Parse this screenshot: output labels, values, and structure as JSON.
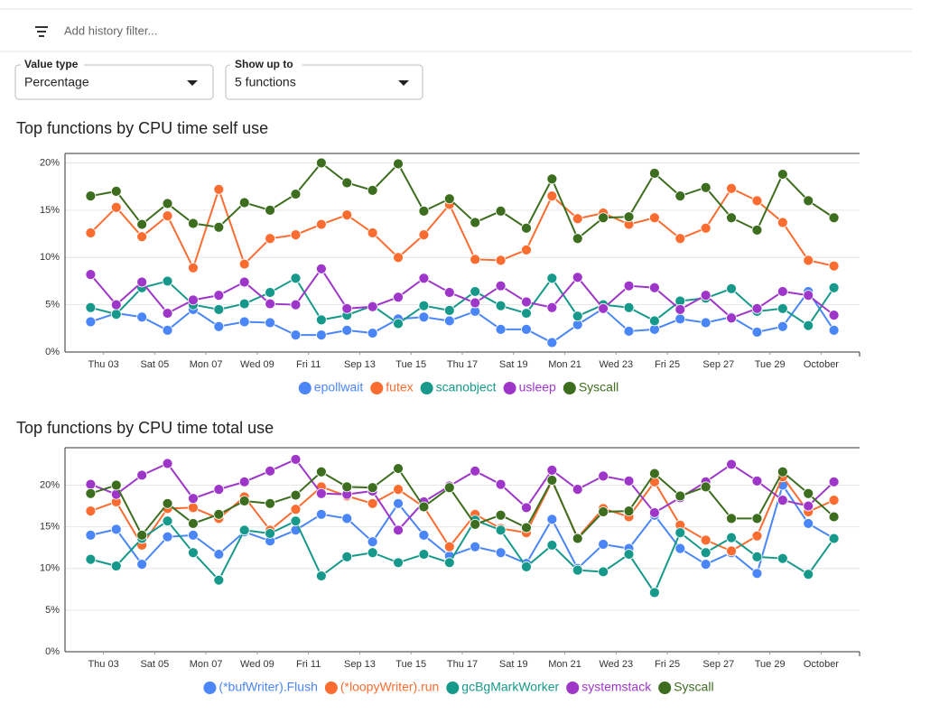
{
  "filter": {
    "placeholder": "Add history filter..."
  },
  "controls": [
    {
      "label": "Value type",
      "value": "Percentage"
    },
    {
      "label": "Show up to",
      "value": "5 functions"
    }
  ],
  "chart_data": [
    {
      "type": "line",
      "title": "Top functions by CPU time self use",
      "xlim": [
        -1,
        30
      ],
      "xticks": [
        {
          "value": 0.5,
          "label": "Thu 03"
        },
        {
          "value": 2.5,
          "label": "Sat 05"
        },
        {
          "value": 4.5,
          "label": "Mon 07"
        },
        {
          "value": 6.5,
          "label": "Wed 09"
        },
        {
          "value": 8.5,
          "label": "Fri 11"
        },
        {
          "value": 10.5,
          "label": "Sep 13"
        },
        {
          "value": 12.5,
          "label": "Tue 15"
        },
        {
          "value": 14.5,
          "label": "Thu 17"
        },
        {
          "value": 16.5,
          "label": "Sat 19"
        },
        {
          "value": 18.5,
          "label": "Mon 21"
        },
        {
          "value": 20.5,
          "label": "Wed 23"
        },
        {
          "value": 22.5,
          "label": "Fri 25"
        },
        {
          "value": 24.5,
          "label": "Sep 27"
        },
        {
          "value": 26.5,
          "label": "Tue 29"
        },
        {
          "value": 28.5,
          "label": "October"
        }
      ],
      "ylim": [
        0,
        21
      ],
      "yticks": [
        {
          "value": 0,
          "label": "0%"
        },
        {
          "value": 5,
          "label": "5%"
        },
        {
          "value": 10,
          "label": "10%"
        },
        {
          "value": 15,
          "label": "15%"
        },
        {
          "value": 20,
          "label": "20%"
        }
      ],
      "grid": true,
      "legend": "bottom",
      "series": [
        {
          "name": "epollwait",
          "color": "#4a86f7",
          "values": [
            3.2,
            4.1,
            3.7,
            2.3,
            4.5,
            2.7,
            3.2,
            3.1,
            1.8,
            1.8,
            2.3,
            2.0,
            3.5,
            3.7,
            3.3,
            4.3,
            2.4,
            2.4,
            1.0,
            2.9,
            4.6,
            2.2,
            2.4,
            3.5,
            3.1,
            3.7,
            2.1,
            2.7,
            6.4,
            2.3
          ]
        },
        {
          "name": "futex",
          "color": "#fb6c30",
          "values": [
            12.6,
            15.3,
            12.2,
            14.4,
            8.9,
            17.2,
            9.3,
            12.0,
            12.4,
            13.5,
            14.5,
            12.6,
            10.0,
            12.4,
            15.6,
            9.8,
            9.7,
            10.8,
            16.5,
            14.1,
            14.7,
            13.5,
            14.2,
            12.0,
            13.1,
            17.3,
            16.0,
            13.7,
            9.7,
            9.1
          ]
        },
        {
          "name": "scanobject",
          "color": "#16998a",
          "values": [
            4.7,
            4.0,
            6.8,
            7.5,
            5.0,
            4.5,
            5.1,
            6.3,
            7.8,
            3.4,
            3.9,
            4.9,
            3.0,
            4.9,
            4.4,
            6.4,
            4.9,
            4.1,
            7.8,
            3.8,
            5.0,
            4.7,
            3.3,
            5.4,
            5.7,
            6.7,
            4.3,
            4.6,
            2.8,
            6.8
          ]
        },
        {
          "name": "usleep",
          "color": "#9e37c9",
          "values": [
            8.2,
            5.0,
            7.4,
            4.1,
            5.5,
            6.0,
            7.4,
            5.1,
            5.0,
            8.8,
            4.6,
            4.8,
            5.8,
            7.8,
            6.3,
            5.2,
            7.0,
            5.3,
            4.7,
            7.9,
            4.6,
            7.0,
            6.8,
            4.5,
            6.0,
            3.6,
            4.6,
            6.4,
            6.0,
            3.9
          ]
        },
        {
          "name": "Syscall",
          "color": "#3d6e1f",
          "values": [
            16.5,
            17.0,
            13.5,
            15.7,
            13.6,
            13.2,
            15.8,
            15.0,
            16.7,
            20.0,
            17.9,
            17.1,
            19.9,
            14.9,
            16.2,
            13.7,
            14.9,
            13.1,
            18.3,
            12.0,
            14.2,
            14.3,
            18.9,
            16.5,
            17.4,
            14.2,
            12.9,
            18.8,
            16.0,
            14.2
          ]
        }
      ]
    },
    {
      "type": "line",
      "title": "Top functions by CPU time total use",
      "xlim": [
        -1,
        30
      ],
      "xticks": [
        {
          "value": 0.5,
          "label": "Thu 03"
        },
        {
          "value": 2.5,
          "label": "Sat 05"
        },
        {
          "value": 4.5,
          "label": "Mon 07"
        },
        {
          "value": 6.5,
          "label": "Wed 09"
        },
        {
          "value": 8.5,
          "label": "Fri 11"
        },
        {
          "value": 10.5,
          "label": "Sep 13"
        },
        {
          "value": 12.5,
          "label": "Tue 15"
        },
        {
          "value": 14.5,
          "label": "Thu 17"
        },
        {
          "value": 16.5,
          "label": "Sat 19"
        },
        {
          "value": 18.5,
          "label": "Mon 21"
        },
        {
          "value": 20.5,
          "label": "Wed 23"
        },
        {
          "value": 22.5,
          "label": "Fri 25"
        },
        {
          "value": 24.5,
          "label": "Sep 27"
        },
        {
          "value": 26.5,
          "label": "Tue 29"
        },
        {
          "value": 28.5,
          "label": "October"
        }
      ],
      "ylim": [
        0,
        24.5
      ],
      "yticks": [
        {
          "value": 0,
          "label": "0%"
        },
        {
          "value": 5,
          "label": "5%"
        },
        {
          "value": 10,
          "label": "10%"
        },
        {
          "value": 15,
          "label": "15%"
        },
        {
          "value": 20,
          "label": "20%"
        }
      ],
      "grid": true,
      "legend": "bottom",
      "series": [
        {
          "name": "(*bufWriter).Flush",
          "color": "#4a86f7",
          "values": [
            14.0,
            14.7,
            10.5,
            13.8,
            14.0,
            11.7,
            14.4,
            13.3,
            14.6,
            16.5,
            16.0,
            13.2,
            17.8,
            14.0,
            11.5,
            12.6,
            11.9,
            10.6,
            15.9,
            10.0,
            12.9,
            12.4,
            16.4,
            12.4,
            10.5,
            11.9,
            9.4,
            20.0,
            15.4,
            13.6
          ]
        },
        {
          "name": "(*loopyWriter).run",
          "color": "#fb6c30",
          "values": [
            16.9,
            18.0,
            12.8,
            17.2,
            17.3,
            16.0,
            18.6,
            14.6,
            17.1,
            19.8,
            18.7,
            17.8,
            19.5,
            17.4,
            12.6,
            16.5,
            14.8,
            14.3,
            20.5,
            13.7,
            17.2,
            16.2,
            20.4,
            15.2,
            13.4,
            12.1,
            13.9,
            21.0,
            16.8,
            18.2
          ]
        },
        {
          "name": "gcBgMarkWorker",
          "color": "#16998a",
          "values": [
            11.1,
            10.3,
            13.6,
            15.7,
            11.9,
            8.6,
            14.6,
            14.2,
            15.7,
            9.1,
            11.4,
            11.9,
            10.7,
            11.7,
            10.7,
            15.8,
            14.6,
            10.2,
            12.8,
            9.8,
            9.6,
            11.7,
            7.1,
            14.3,
            11.9,
            13.7,
            11.4,
            11.2,
            9.3,
            13.6
          ]
        },
        {
          "name": "systemstack",
          "color": "#9e37c9",
          "values": [
            20.1,
            18.9,
            21.2,
            22.6,
            18.4,
            19.5,
            20.4,
            21.7,
            23.1,
            19.0,
            18.9,
            19.3,
            14.6,
            18.0,
            19.9,
            21.7,
            20.1,
            17.3,
            21.8,
            19.5,
            21.1,
            20.5,
            16.7,
            18.5,
            20.4,
            22.5,
            20.5,
            18.2,
            17.5,
            20.4
          ]
        },
        {
          "name": "Syscall",
          "color": "#3d6e1f",
          "values": [
            19.0,
            20.0,
            14.0,
            17.8,
            15.4,
            16.5,
            18.1,
            17.8,
            18.8,
            21.6,
            19.8,
            19.7,
            22.0,
            17.4,
            19.7,
            15.3,
            16.4,
            14.9,
            20.6,
            13.6,
            16.8,
            16.9,
            21.4,
            18.7,
            19.8,
            16.0,
            16.0,
            21.6,
            19.0,
            16.2
          ]
        }
      ]
    }
  ]
}
